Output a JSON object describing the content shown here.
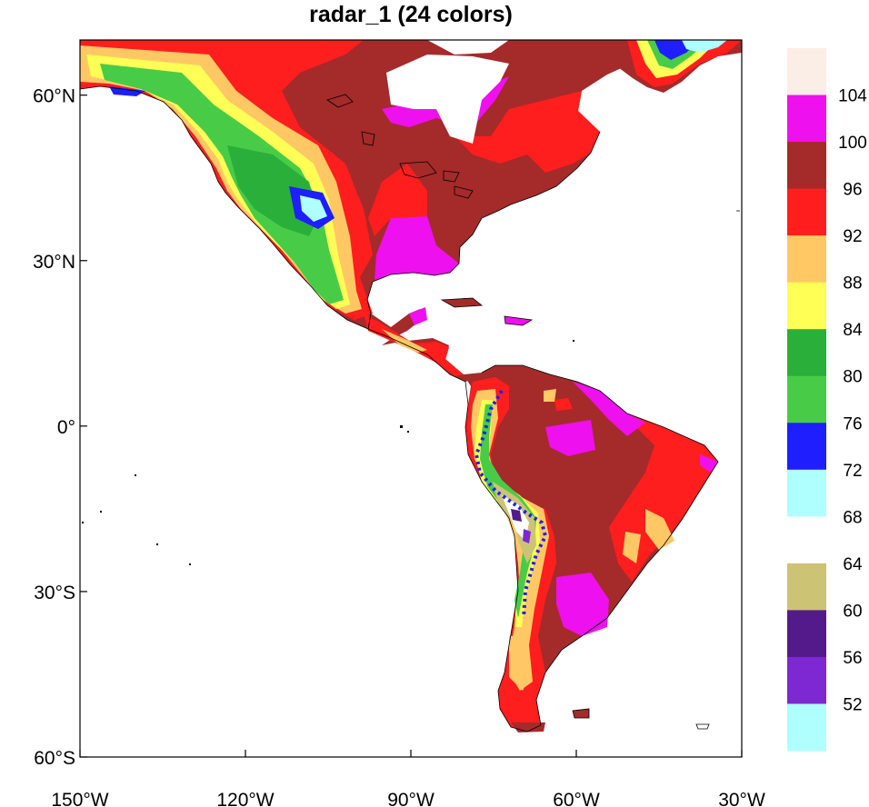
{
  "title": "radar_1 (24 colors)",
  "colors": {
    "ocean": "#ffffff",
    "coastline": "#000000",
    "frame": "#000000"
  },
  "map": {
    "projection": "cylindrical-equidistant",
    "lon_range": [
      -150,
      -30
    ],
    "lat_range": [
      -60,
      70
    ],
    "lon_ticks": [
      {
        "value": -150,
        "label": "150°W"
      },
      {
        "value": -120,
        "label": "120°W"
      },
      {
        "value": -90,
        "label": "90°W"
      },
      {
        "value": -60,
        "label": "60°W"
      },
      {
        "value": -30,
        "label": "30°W"
      }
    ],
    "lat_ticks": [
      {
        "value": 60,
        "label": "60°N"
      },
      {
        "value": 30,
        "label": "30°N"
      },
      {
        "value": 0,
        "label": "0°"
      },
      {
        "value": -30,
        "label": "30°S"
      },
      {
        "value": -60,
        "label": "60°S"
      }
    ]
  },
  "colorbar": {
    "boxes": [
      {
        "color": "#fbeee6"
      },
      {
        "color": "#ee10ee"
      },
      {
        "color": "#a52a2a"
      },
      {
        "color": "#ff1e1e"
      },
      {
        "color": "#ffc864"
      },
      {
        "color": "#ffff55"
      },
      {
        "color": "#2aaf3a"
      },
      {
        "color": "#48cc48"
      },
      {
        "color": "#1e1eff"
      },
      {
        "color": "#b0ffff"
      },
      {
        "color": "#ffffff"
      },
      {
        "color": "#cdc374"
      },
      {
        "color": "#531a8c"
      },
      {
        "color": "#7d28d2"
      },
      {
        "color": "#b0ffff"
      }
    ],
    "labels": [
      "104",
      "100",
      "96",
      "92",
      "88",
      "84",
      "80",
      "76",
      "72",
      "68",
      "64",
      "60",
      "56",
      "52"
    ]
  }
}
